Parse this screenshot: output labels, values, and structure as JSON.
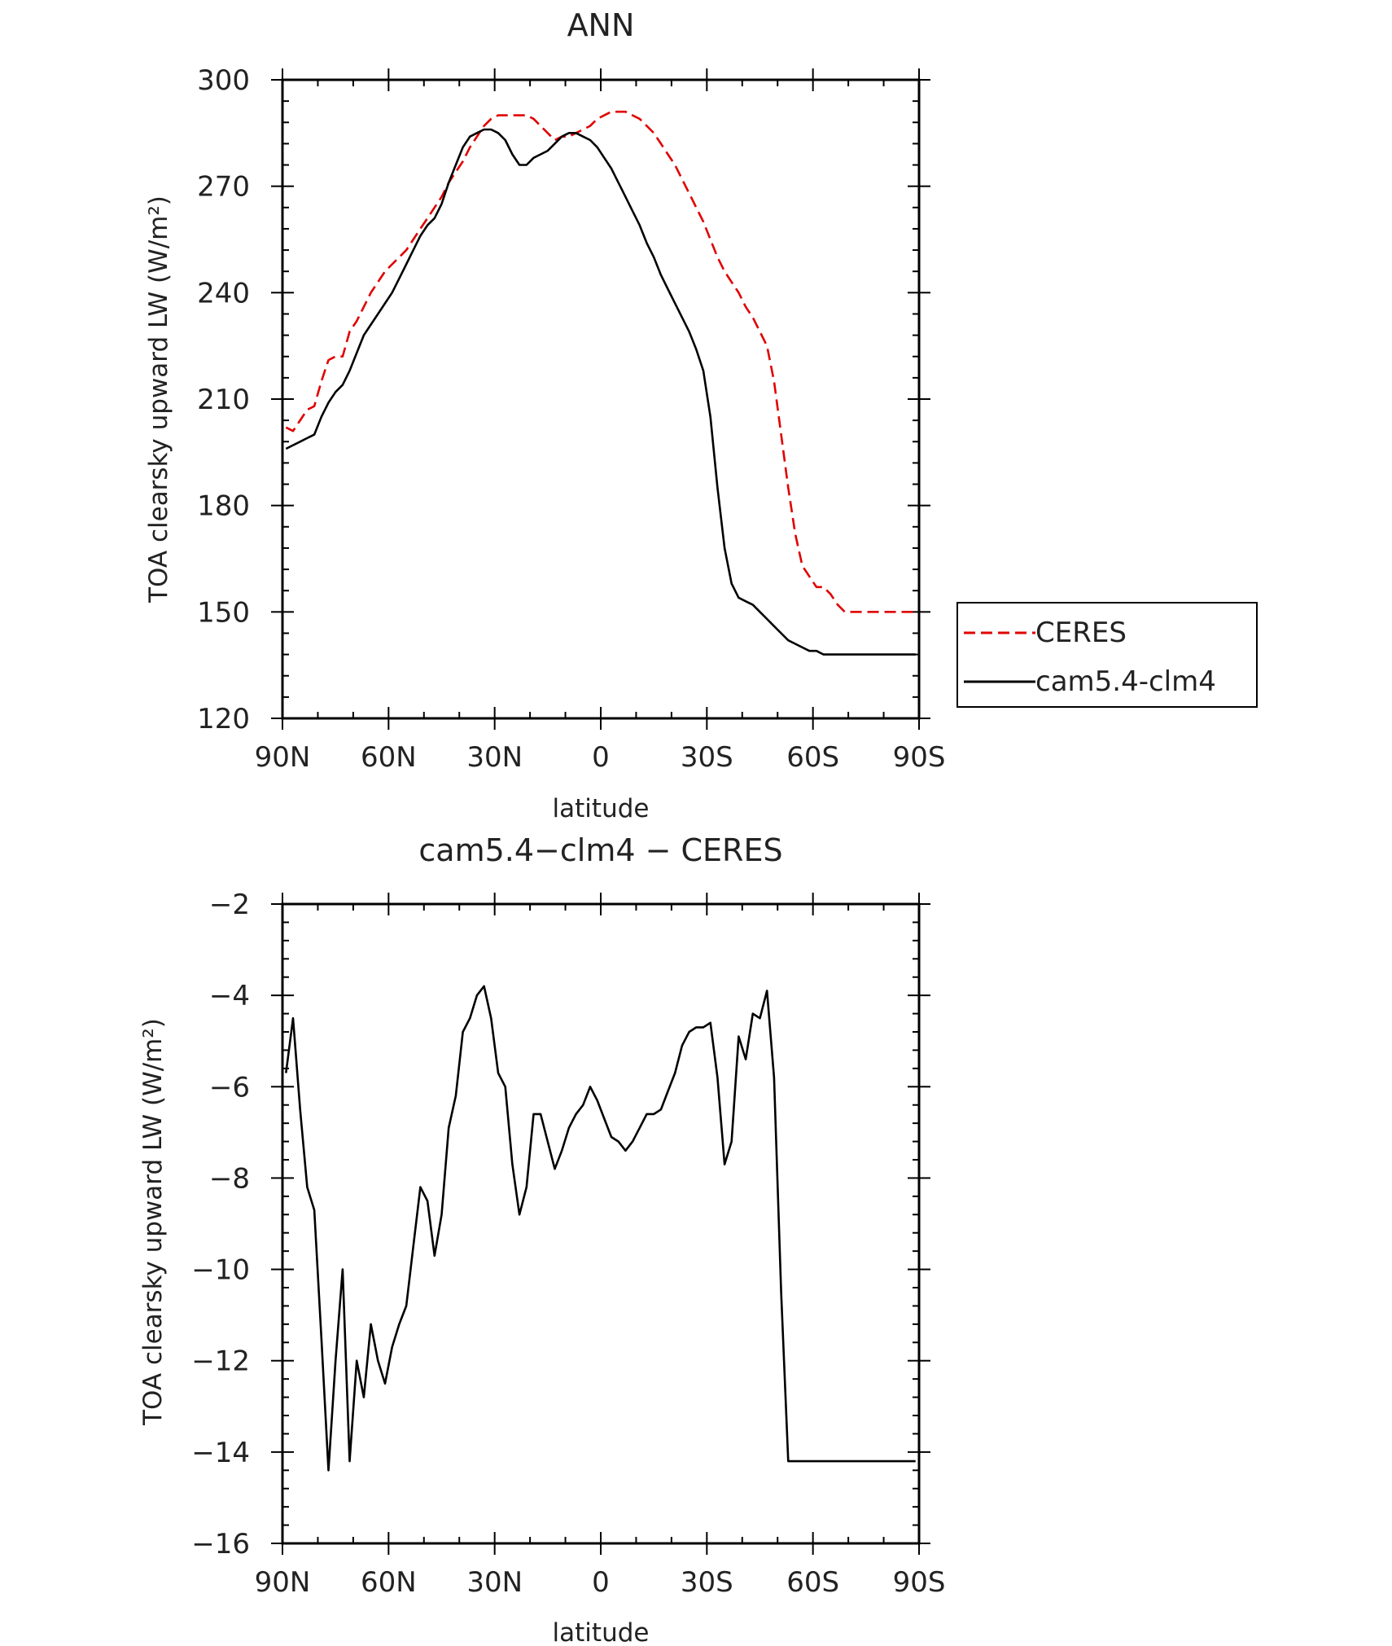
{
  "chart_data": [
    {
      "type": "line",
      "title": "ANN",
      "xlabel": "latitude",
      "ylabel": "TOA clearsky upward LW (W/m²)",
      "xlim": [
        90,
        -90
      ],
      "ylim": [
        120,
        300
      ],
      "x_ticks": [
        {
          "value": 90,
          "label": "90N"
        },
        {
          "value": 60,
          "label": "60N"
        },
        {
          "value": 30,
          "label": "30N"
        },
        {
          "value": 0,
          "label": "0"
        },
        {
          "value": -30,
          "label": "30S"
        },
        {
          "value": -60,
          "label": "60S"
        },
        {
          "value": -90,
          "label": "90S"
        }
      ],
      "y_ticks": [
        {
          "value": 120,
          "label": "120"
        },
        {
          "value": 150,
          "label": "150"
        },
        {
          "value": 180,
          "label": "180"
        },
        {
          "value": 210,
          "label": "210"
        },
        {
          "value": 240,
          "label": "240"
        },
        {
          "value": 270,
          "label": "270"
        },
        {
          "value": 300,
          "label": "300"
        }
      ],
      "legend": "right",
      "series": [
        {
          "name": "CERES",
          "color": "#e00000",
          "dash": true,
          "x": [
            89,
            87,
            85,
            83,
            81,
            79,
            77,
            75,
            73,
            71,
            69,
            67,
            65,
            63,
            61,
            59,
            57,
            55,
            53,
            51,
            49,
            47,
            45,
            43,
            41,
            39,
            37,
            35,
            33,
            31,
            29,
            27,
            25,
            23,
            21,
            19,
            17,
            15,
            13,
            11,
            9,
            7,
            5,
            3,
            1,
            -1,
            -3,
            -5,
            -7,
            -9,
            -11,
            -13,
            -15,
            -17,
            -19,
            -21,
            -23,
            -25,
            -27,
            -29,
            -31,
            -33,
            -35,
            -37,
            -39,
            -41,
            -43,
            -45,
            -47,
            -49,
            -51,
            -53,
            -55,
            -57,
            -59,
            -61,
            -63,
            -65,
            -67,
            -69,
            -71,
            -73,
            -75,
            -77,
            -79,
            -81,
            -83,
            -85,
            -87,
            -89
          ],
          "y": [
            202,
            201,
            204,
            207,
            208,
            215,
            221,
            222,
            222,
            229,
            232,
            236,
            240,
            243,
            246,
            248,
            250,
            252,
            255,
            258,
            261,
            264,
            267,
            271,
            274,
            277,
            281,
            284,
            287,
            289,
            290,
            290,
            290,
            290,
            290,
            289,
            287,
            285,
            283,
            284,
            284,
            285,
            286,
            287,
            289,
            290,
            291,
            291,
            291,
            290,
            289,
            287,
            285,
            282,
            279,
            276,
            272,
            268,
            264,
            260,
            255,
            250,
            246,
            243,
            240,
            236,
            233,
            229,
            225,
            215,
            200,
            185,
            172,
            163,
            160,
            157,
            157,
            155,
            152,
            150,
            150,
            150,
            150,
            150,
            150,
            150,
            150,
            150,
            150,
            150
          ]
        },
        {
          "name": "cam5.4-clm4",
          "color": "#000000",
          "dash": false,
          "x": [
            89,
            87,
            85,
            83,
            81,
            79,
            77,
            75,
            73,
            71,
            69,
            67,
            65,
            63,
            61,
            59,
            57,
            55,
            53,
            51,
            49,
            47,
            45,
            43,
            41,
            39,
            37,
            35,
            33,
            31,
            29,
            27,
            25,
            23,
            21,
            19,
            17,
            15,
            13,
            11,
            9,
            7,
            5,
            3,
            1,
            -1,
            -3,
            -5,
            -7,
            -9,
            -11,
            -13,
            -15,
            -17,
            -19,
            -21,
            -23,
            -25,
            -27,
            -29,
            -31,
            -33,
            -35,
            -37,
            -39,
            -41,
            -43,
            -45,
            -47,
            -49,
            -51,
            -53,
            -55,
            -57,
            -59,
            -61,
            -63,
            -65,
            -67,
            -69,
            -71,
            -73,
            -75,
            -77,
            -79,
            -81,
            -83,
            -85,
            -87,
            -89
          ],
          "y": [
            196,
            197,
            198,
            199,
            200,
            205,
            209,
            212,
            214,
            218,
            223,
            228,
            231,
            234,
            237,
            240,
            244,
            248,
            252,
            256,
            259,
            261,
            265,
            271,
            276,
            281,
            284,
            285,
            286,
            286,
            285,
            283,
            279,
            276,
            276,
            278,
            279,
            280,
            282,
            284,
            285,
            285,
            284,
            283,
            281,
            278,
            275,
            271,
            267,
            263,
            259,
            254,
            250,
            245,
            241,
            237,
            233,
            229,
            224,
            218,
            205,
            185,
            168,
            158,
            154,
            153,
            152,
            150,
            148,
            146,
            144,
            142,
            141,
            140,
            139,
            139,
            138,
            138,
            138,
            138,
            138,
            138,
            138,
            138,
            138,
            138,
            138,
            138,
            138,
            138
          ]
        }
      ]
    },
    {
      "type": "line",
      "title": "cam5.4−clm4 − CERES",
      "xlabel": "latitude",
      "ylabel": "TOA clearsky upward LW (W/m²)",
      "xlim": [
        90,
        -90
      ],
      "ylim": [
        -16,
        -2
      ],
      "x_ticks": [
        {
          "value": 90,
          "label": "90N"
        },
        {
          "value": 60,
          "label": "60N"
        },
        {
          "value": 30,
          "label": "30N"
        },
        {
          "value": 0,
          "label": "0"
        },
        {
          "value": -30,
          "label": "30S"
        },
        {
          "value": -60,
          "label": "60S"
        },
        {
          "value": -90,
          "label": "90S"
        }
      ],
      "y_ticks": [
        {
          "value": -16,
          "label": "−16"
        },
        {
          "value": -14,
          "label": "−14"
        },
        {
          "value": -12,
          "label": "−12"
        },
        {
          "value": -10,
          "label": "−10"
        },
        {
          "value": -8,
          "label": "−8"
        },
        {
          "value": -6,
          "label": "−6"
        },
        {
          "value": -4,
          "label": "−4"
        },
        {
          "value": -2,
          "label": "−2"
        }
      ],
      "series": [
        {
          "color": "#000000",
          "dash": false,
          "x": [
            89,
            87,
            85,
            83,
            81,
            79,
            77,
            75,
            73,
            71,
            69,
            67,
            65,
            63,
            61,
            59,
            57,
            55,
            53,
            51,
            49,
            47,
            45,
            43,
            41,
            39,
            37,
            35,
            33,
            31,
            29,
            27,
            25,
            23,
            21,
            19,
            17,
            15,
            13,
            11,
            9,
            7,
            5,
            3,
            1,
            -1,
            -3,
            -5,
            -7,
            -9,
            -11,
            -13,
            -15,
            -17,
            -19,
            -21,
            -23,
            -25,
            -27,
            -29,
            -31,
            -33,
            -35,
            -37,
            -39,
            -41,
            -43,
            -45,
            -47,
            -49,
            -51,
            -53,
            -55,
            -57,
            -59,
            -61,
            -63,
            -65,
            -67,
            -69,
            -71,
            -73,
            -75,
            -77,
            -79,
            -81,
            -83,
            -85,
            -87,
            -89
          ],
          "y": [
            -5.7,
            -4.5,
            -6.5,
            -8.2,
            -8.7,
            -11.5,
            -14.4,
            -12.0,
            -10.0,
            -14.2,
            -12.0,
            -12.8,
            -11.2,
            -12.0,
            -12.5,
            -11.7,
            -11.2,
            -10.8,
            -9.5,
            -8.2,
            -8.5,
            -9.7,
            -8.8,
            -6.9,
            -6.2,
            -4.8,
            -4.5,
            -4.0,
            -3.8,
            -4.5,
            -5.7,
            -6.0,
            -7.7,
            -8.8,
            -8.2,
            -6.6,
            -6.6,
            -7.2,
            -7.8,
            -7.4,
            -6.9,
            -6.6,
            -6.4,
            -6.0,
            -6.3,
            -6.7,
            -7.1,
            -7.2,
            -7.4,
            -7.2,
            -6.9,
            -6.6,
            -6.6,
            -6.5,
            -6.1,
            -5.7,
            -5.1,
            -4.8,
            -4.7,
            -4.7,
            -4.6,
            -5.8,
            -7.7,
            -7.2,
            -4.9,
            -5.4,
            -4.4,
            -4.5,
            -3.9,
            -5.8,
            -10.5,
            -14.2,
            -14.2,
            -14.2,
            -14.2,
            -14.2,
            -14.2,
            -14.2,
            -14.2,
            -14.2,
            -14.2,
            -14.2,
            -14.2,
            -14.2,
            -14.2,
            -14.2,
            -14.2,
            -14.2,
            -14.2,
            -14.2
          ]
        }
      ]
    }
  ]
}
